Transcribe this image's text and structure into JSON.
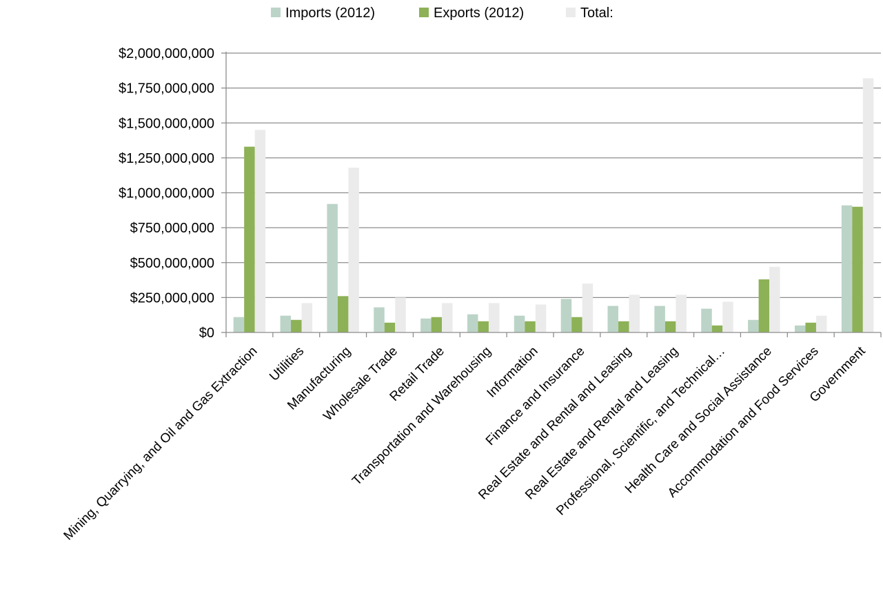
{
  "chart_data": {
    "type": "bar",
    "categories": [
      "Mining, Quarrying, and Oil and Gas Extraction",
      "Utilities",
      "Manufacturing",
      "Wholesale Trade",
      "Retail Trade",
      "Transportation and Warehousing",
      "Information",
      "Finance and Insurance",
      "Real Estate and Rental and Leasing",
      "Real Estate and Rental and Leasing",
      "Professional, Scientific, and Technical…",
      "Health Care and Social Assistance",
      "Accommodation and Food Services",
      "Government"
    ],
    "series": [
      {
        "name": "Imports (2012)",
        "color": "#bcd4c8",
        "values": [
          110000000,
          120000000,
          920000000,
          180000000,
          100000000,
          130000000,
          120000000,
          240000000,
          190000000,
          190000000,
          170000000,
          90000000,
          50000000,
          910000000
        ]
      },
      {
        "name": "Exports (2012)",
        "color": "#8db156",
        "values": [
          1330000000,
          90000000,
          260000000,
          70000000,
          110000000,
          80000000,
          80000000,
          110000000,
          80000000,
          80000000,
          50000000,
          380000000,
          70000000,
          900000000
        ]
      },
      {
        "name": "Total:",
        "color": "#ebebeb",
        "values": [
          1450000000,
          210000000,
          1180000000,
          250000000,
          210000000,
          210000000,
          200000000,
          350000000,
          270000000,
          270000000,
          220000000,
          470000000,
          120000000,
          1820000000
        ]
      }
    ],
    "ylim": [
      0,
      2000000000
    ],
    "yticks": [
      0,
      250000000,
      500000000,
      750000000,
      1000000000,
      1250000000,
      1500000000,
      1750000000,
      2000000000
    ],
    "ytick_labels": [
      "$0",
      "$250,000,000",
      "$500,000,000",
      "$750,000,000",
      "$1,000,000,000",
      "$1,250,000,000",
      "$1,500,000,000",
      "$1,750,000,000",
      "$2,000,000,000"
    ],
    "grid": true,
    "legend_position": "top"
  }
}
